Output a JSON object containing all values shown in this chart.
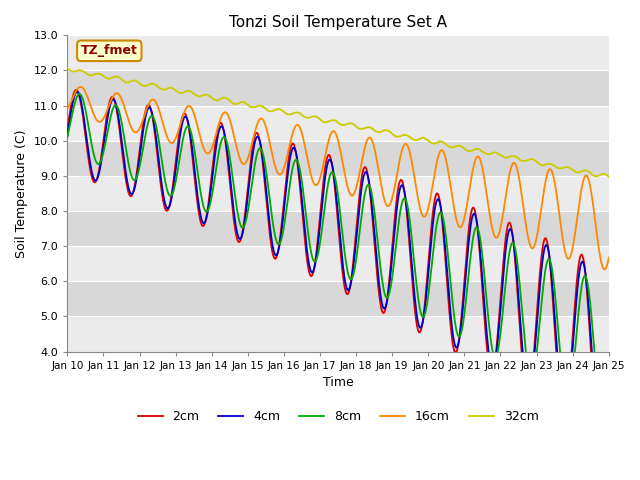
{
  "title": "Tonzi Soil Temperature Set A",
  "ylabel": "Soil Temperature (C)",
  "xlabel": "Time",
  "ylim": [
    4.0,
    13.0
  ],
  "yticks": [
    4.0,
    5.0,
    6.0,
    7.0,
    8.0,
    9.0,
    10.0,
    11.0,
    12.0,
    13.0
  ],
  "annotation": "TZ_fmet",
  "legend": [
    "2cm",
    "4cm",
    "8cm",
    "16cm",
    "32cm"
  ],
  "colors": [
    "#dd0000",
    "#0000cc",
    "#00aa00",
    "#ff8800",
    "#cccc00"
  ],
  "bg_color": "#e0e0e0",
  "band_light": "#ebebeb",
  "band_dark": "#d8d8d8",
  "n_points": 720,
  "x_start": 10,
  "x_end": 25,
  "xtick_labels": [
    "Jan 10",
    "Jan 11",
    "Jan 12",
    "Jan 13",
    "Jan 14",
    "Jan 15",
    "Jan 16",
    "Jan 17",
    "Jan 18",
    "Jan 19",
    "Jan 20",
    "Jan 21",
    "Jan 22",
    "Jan 23",
    "Jan 24",
    "Jan 25"
  ],
  "xtick_positions": [
    10,
    11,
    12,
    13,
    14,
    15,
    16,
    17,
    18,
    19,
    20,
    21,
    22,
    23,
    24,
    25
  ]
}
